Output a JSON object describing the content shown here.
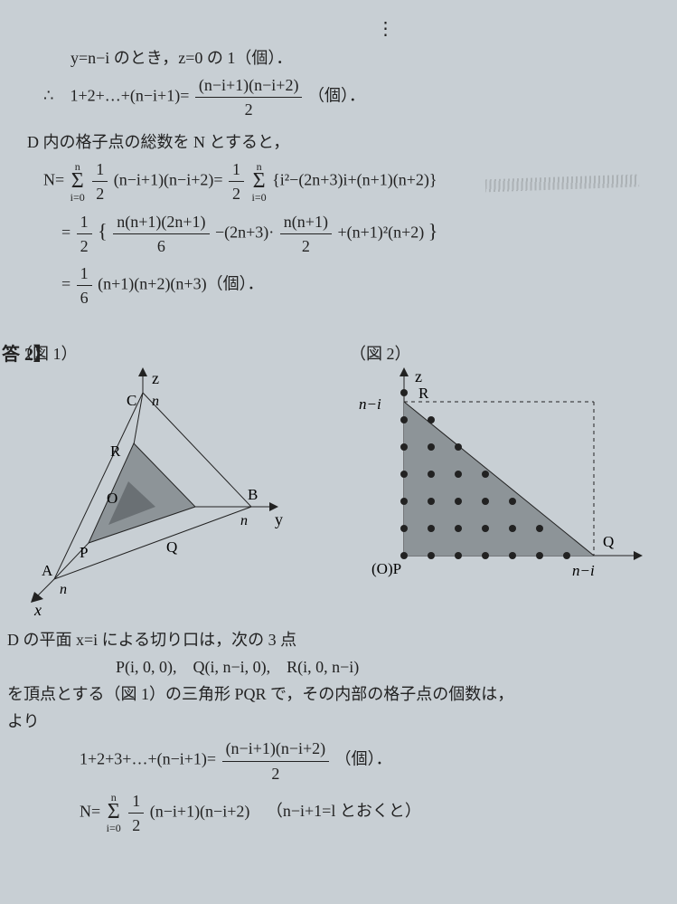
{
  "top": {
    "vdots": "⋮",
    "line1_pre": "y=n−i のとき，z=0 の 1（個）．",
    "line2_pre": "∴　1+2+…+(n−i+1)=",
    "line2_num": "(n−i+1)(n−i+2)",
    "line2_den": "2",
    "line2_post": "（個）．",
    "line3": "D 内の格子点の総数を N とすると，",
    "N1_lhs": "N=",
    "N1_sum_top": "n",
    "N1_sum_bot": "i=0",
    "N1_f1_num": "1",
    "N1_f1_den": "2",
    "N1_mid1": "(n−i+1)(n−i+2)=",
    "N1_f2_num": "1",
    "N1_f2_den": "2",
    "N1_sum2_top": "n",
    "N1_sum2_bot": "i=0",
    "N1_mid2": "{i²−(2n+3)i+(n+1)(n+2)}",
    "N2_eq": "=",
    "N2_f1_num": "1",
    "N2_f1_den": "2",
    "N2_brL": "{",
    "N2_fa_num": "n(n+1)(2n+1)",
    "N2_fa_den": "6",
    "N2_mid1": "−(2n+3)·",
    "N2_fb_num": "n(n+1)",
    "N2_fb_den": "2",
    "N2_mid2": "+(n+1)²(n+2)",
    "N2_brR": "}",
    "N3_eq": "=",
    "N3_f_num": "1",
    "N3_f_den": "6",
    "N3_tail": "(n+1)(n+2)(n+3)（個）．"
  },
  "ans_label": "答 2】",
  "fig1": {
    "label": "（図 1）",
    "axis_z": "z",
    "axis_y": "y",
    "axis_x": "x",
    "O": "O",
    "A": "A",
    "B": "B",
    "C": "C",
    "P": "P",
    "Q": "Q",
    "R": "R",
    "n1": "n",
    "n2": "n",
    "n3": "n",
    "fill": "#8d9498",
    "stroke": "#222"
  },
  "fig2": {
    "label": "（図 2）",
    "axis_z": "z",
    "R": "R",
    "Q": "Q",
    "OP": "(O)P",
    "nmi_v": "n−i",
    "nmi_h": "n−i",
    "fill": "#8d9498",
    "stroke": "#222",
    "dot": "#222"
  },
  "bottom": {
    "line1": "D の平面 x=i による切り口は，次の 3 点",
    "line2": "P(i, 0, 0),　Q(i, n−i, 0),　R(i, 0, n−i)",
    "line3": "を頂点とする（図 1）の三角形 PQR で，その内部の格子点の個数は，",
    "line4": "より",
    "s1_pre": "1+2+3+…+(n−i+1)=",
    "s1_num": "(n−i+1)(n−i+2)",
    "s1_den": "2",
    "s1_post": "（個）．",
    "s2_pre": "N=",
    "s2_sum_top": "n",
    "s2_sum_bot": "i=0",
    "s2_f_num": "1",
    "s2_f_den": "2",
    "s2_mid": "(n−i+1)(n−i+2)",
    "s2_post": "（n−i+1=l とおくと）"
  }
}
